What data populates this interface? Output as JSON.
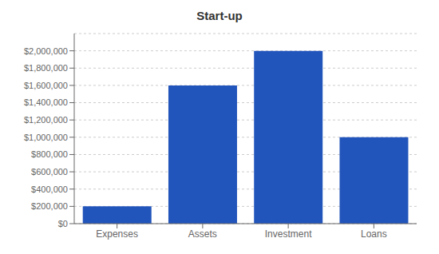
{
  "chart_data": {
    "type": "bar",
    "title": "Start-up",
    "categories": [
      "Expenses",
      "Assets",
      "Investment",
      "Loans"
    ],
    "values": [
      200000,
      1600000,
      2000000,
      1000000
    ],
    "color": "#2255bb",
    "ylim": [
      0,
      2200000
    ],
    "yticks": [
      {
        "value": 0,
        "label": "$0"
      },
      {
        "value": 200000,
        "label": "$200,000"
      },
      {
        "value": 400000,
        "label": "$400,000"
      },
      {
        "value": 600000,
        "label": "$600,000"
      },
      {
        "value": 800000,
        "label": "$800,000"
      },
      {
        "value": 1000000,
        "label": "$1,000,000"
      },
      {
        "value": 1200000,
        "label": "$1,200,000"
      },
      {
        "value": 1400000,
        "label": "$1,400,000"
      },
      {
        "value": 1600000,
        "label": "$1,600,000"
      },
      {
        "value": 1800000,
        "label": "$1,800,000"
      },
      {
        "value": 2000000,
        "label": "$2,000,000"
      }
    ],
    "grid": true
  }
}
